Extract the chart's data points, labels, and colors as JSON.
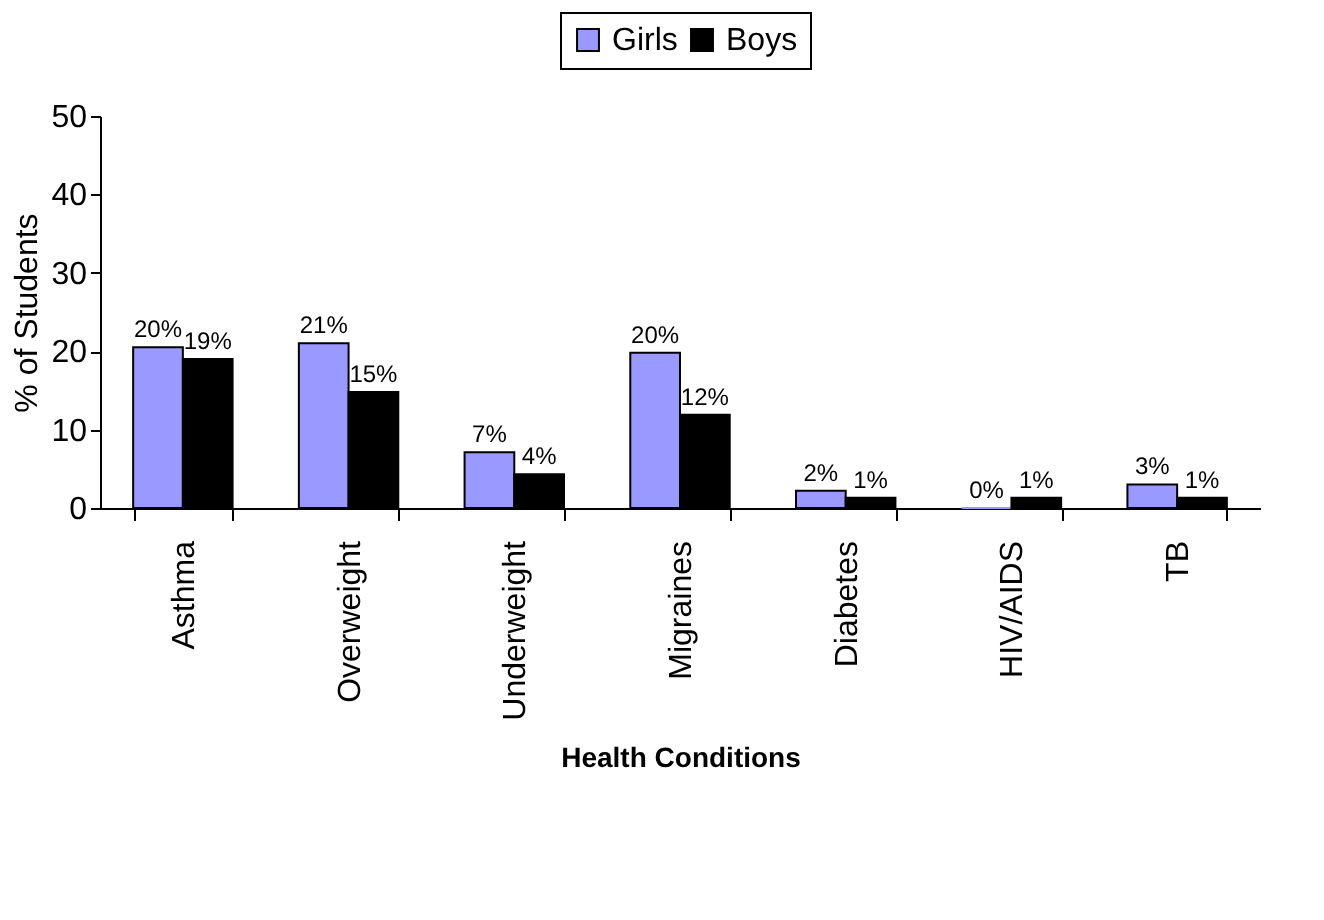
{
  "chart_data": {
    "type": "bar",
    "xlabel": "Health Conditions",
    "ylabel": "% of Students",
    "categories": [
      "Asthma",
      "Overweight",
      "Underweight",
      "Migraines",
      "Diabetes",
      "HIV/AIDS",
      "TB"
    ],
    "series": [
      {
        "name": "Girls",
        "color": "#9999ff",
        "values": [
          20.5,
          21,
          7.1,
          19.8,
          2.2,
          0,
          3
        ],
        "value_labels": [
          "20%",
          "21%",
          "7%",
          "20%",
          "2%",
          "0%",
          "3%"
        ]
      },
      {
        "name": "Boys",
        "color": "#000000",
        "values": [
          19,
          14.8,
          4.3,
          11.9,
          1.3,
          1.3,
          1.3
        ],
        "value_labels": [
          "19%",
          "15%",
          "4%",
          "12%",
          "1%",
          "1%",
          "1%"
        ]
      }
    ],
    "ylim": [
      0,
      50
    ],
    "yticks": [
      0,
      10,
      20,
      30,
      40,
      50
    ],
    "grid": false,
    "legend": "top"
  }
}
